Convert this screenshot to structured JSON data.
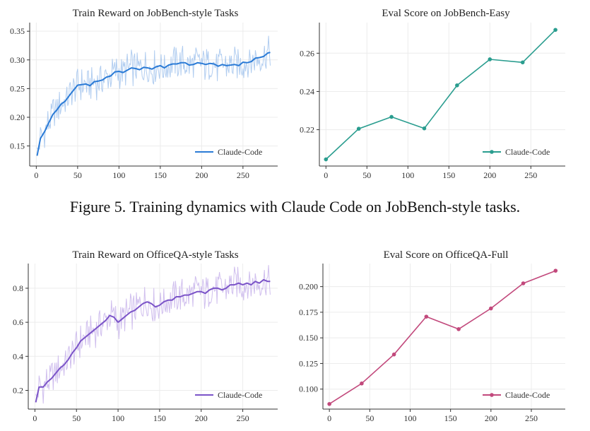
{
  "caption": "Figure 5. Training dynamics with Claude Code on JobBench-style tasks.",
  "chart_data": [
    {
      "type": "line",
      "title": "Train Reward on JobBench-style Tasks",
      "xlabel": "",
      "ylabel": "",
      "xlim": [
        -8,
        292
      ],
      "ylim": [
        0.115,
        0.365
      ],
      "xticks": [
        0,
        50,
        100,
        150,
        200,
        250
      ],
      "yticks": [
        0.15,
        0.2,
        0.25,
        0.3,
        0.35
      ],
      "ytick_labels": [
        "0.15",
        "0.20",
        "0.25",
        "0.30",
        "0.35"
      ],
      "grid": true,
      "legend": "bottom-right",
      "color": "#2b7bd6",
      "raw_color": "#a9c8ee",
      "series": [
        {
          "name": "Claude-Code",
          "x": [
            1,
            5,
            10,
            15,
            20,
            25,
            30,
            35,
            40,
            45,
            50,
            55,
            60,
            65,
            70,
            75,
            80,
            85,
            90,
            95,
            100,
            105,
            110,
            115,
            120,
            125,
            130,
            135,
            140,
            145,
            150,
            155,
            160,
            165,
            170,
            175,
            180,
            185,
            190,
            195,
            200,
            205,
            210,
            215,
            220,
            225,
            230,
            235,
            240,
            245,
            250,
            255,
            260,
            265,
            270,
            275,
            280,
            283
          ],
          "values": [
            0.133,
            0.163,
            0.175,
            0.19,
            0.205,
            0.213,
            0.223,
            0.228,
            0.238,
            0.247,
            0.256,
            0.257,
            0.258,
            0.255,
            0.262,
            0.263,
            0.265,
            0.27,
            0.272,
            0.279,
            0.28,
            0.278,
            0.282,
            0.286,
            0.285,
            0.283,
            0.287,
            0.286,
            0.284,
            0.288,
            0.29,
            0.286,
            0.291,
            0.293,
            0.293,
            0.295,
            0.295,
            0.291,
            0.292,
            0.295,
            0.294,
            0.292,
            0.294,
            0.293,
            0.289,
            0.292,
            0.29,
            0.291,
            0.292,
            0.29,
            0.296,
            0.295,
            0.297,
            0.303,
            0.304,
            0.306,
            0.312,
            0.313
          ]
        }
      ]
    },
    {
      "type": "line",
      "title": "Eval Score on JobBench-Easy",
      "xlabel": "",
      "ylabel": "",
      "xlim": [
        -8,
        292
      ],
      "ylim": [
        0.201,
        0.276
      ],
      "xticks": [
        0,
        50,
        100,
        150,
        200,
        250
      ],
      "yticks": [
        0.22,
        0.24,
        0.26
      ],
      "ytick_labels": [
        "0.22",
        "0.24",
        "0.26"
      ],
      "grid": true,
      "legend": "bottom-right",
      "markers": true,
      "color": "#2a9d8f",
      "series": [
        {
          "name": "Claude-Code",
          "x": [
            0,
            40,
            80,
            120,
            160,
            200,
            240,
            280
          ],
          "values": [
            0.2045,
            0.2205,
            0.2267,
            0.2207,
            0.2432,
            0.2568,
            0.2552,
            0.2722
          ]
        }
      ]
    },
    {
      "type": "line",
      "title": "Train Reward on OfficeQA-style Tasks",
      "xlabel": "",
      "ylabel": "",
      "xlim": [
        -8,
        292
      ],
      "ylim": [
        0.09,
        0.945
      ],
      "xticks": [
        0,
        50,
        100,
        150,
        200,
        250
      ],
      "yticks": [
        0.2,
        0.4,
        0.6,
        0.8
      ],
      "ytick_labels": [
        "0.2",
        "0.4",
        "0.6",
        "0.8"
      ],
      "grid": true,
      "legend": "bottom-right",
      "color": "#7b54c8",
      "raw_color": "#cbb8ec",
      "series": [
        {
          "name": "Claude-Code",
          "x": [
            1,
            5,
            10,
            15,
            20,
            25,
            30,
            35,
            40,
            45,
            50,
            55,
            60,
            65,
            70,
            75,
            80,
            85,
            90,
            95,
            100,
            105,
            110,
            115,
            120,
            125,
            130,
            135,
            140,
            145,
            150,
            155,
            160,
            165,
            170,
            175,
            180,
            185,
            190,
            195,
            200,
            205,
            210,
            215,
            220,
            225,
            230,
            235,
            240,
            245,
            250,
            255,
            260,
            265,
            270,
            275,
            280,
            283
          ],
          "values": [
            0.13,
            0.22,
            0.22,
            0.25,
            0.27,
            0.3,
            0.33,
            0.35,
            0.38,
            0.42,
            0.45,
            0.49,
            0.51,
            0.53,
            0.55,
            0.57,
            0.59,
            0.61,
            0.64,
            0.63,
            0.6,
            0.62,
            0.64,
            0.66,
            0.67,
            0.69,
            0.71,
            0.72,
            0.71,
            0.69,
            0.7,
            0.72,
            0.73,
            0.73,
            0.75,
            0.75,
            0.76,
            0.76,
            0.77,
            0.78,
            0.78,
            0.77,
            0.79,
            0.8,
            0.8,
            0.79,
            0.8,
            0.82,
            0.82,
            0.83,
            0.82,
            0.83,
            0.82,
            0.84,
            0.83,
            0.85,
            0.84,
            0.84
          ]
        }
      ]
    },
    {
      "type": "line",
      "title": "Eval Score on OfficeQA-Full",
      "xlabel": "",
      "ylabel": "",
      "xlim": [
        -8,
        292
      ],
      "ylim": [
        0.0805,
        0.2225
      ],
      "xticks": [
        0,
        50,
        100,
        150,
        200,
        250
      ],
      "yticks": [
        0.1,
        0.125,
        0.15,
        0.175,
        0.2
      ],
      "ytick_labels": [
        "0.100",
        "0.125",
        "0.150",
        "0.175",
        "0.200"
      ],
      "grid": true,
      "legend": "bottom-right",
      "markers": true,
      "color": "#c2497c",
      "series": [
        {
          "name": "Claude-Code",
          "x": [
            0,
            40,
            80,
            120,
            160,
            200,
            240,
            280
          ],
          "values": [
            0.0855,
            0.1055,
            0.1338,
            0.1707,
            0.1585,
            0.1787,
            0.2032,
            0.2155
          ]
        }
      ]
    }
  ]
}
